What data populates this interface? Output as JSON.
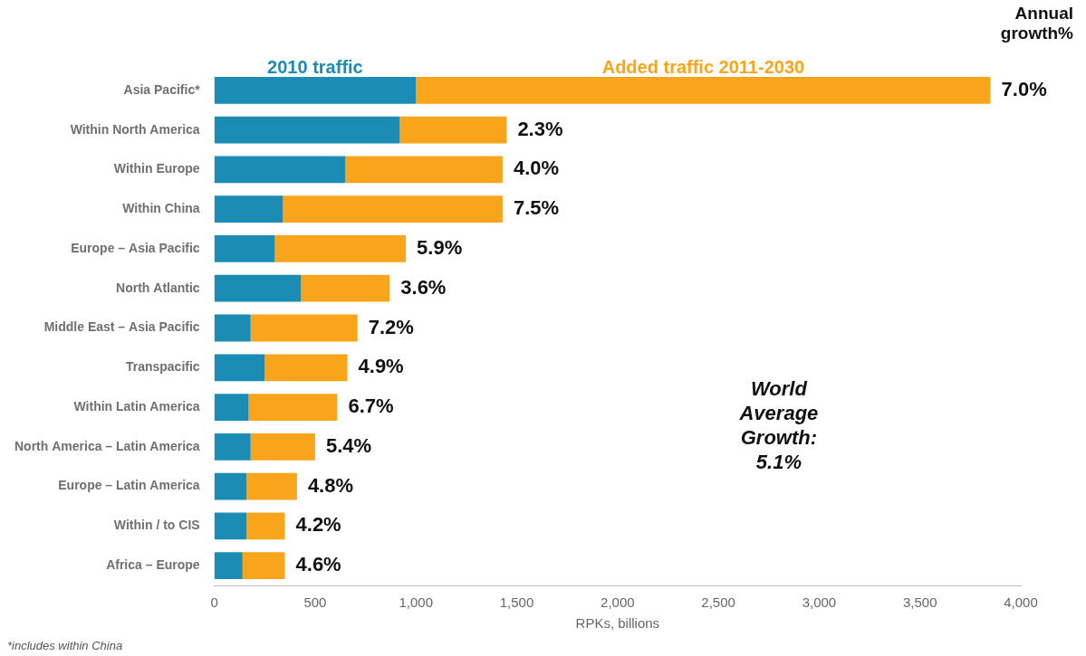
{
  "chart_data": {
    "type": "bar",
    "orientation": "horizontal",
    "stacked": true,
    "grid": false,
    "legend": "top",
    "categories": [
      "Asia Pacific*",
      "Within North America",
      "Within Europe",
      "Within China",
      "Europe – Asia Pacific",
      "North Atlantic",
      "Middle East – Asia Pacific",
      "Transpacific",
      "Within Latin America",
      "North America – Latin America",
      "Europe – Latin America",
      "Within / to CIS",
      "Africa – Europe"
    ],
    "series": [
      {
        "name": "2010 traffic",
        "color": "#1b8db5",
        "values": [
          1000,
          920,
          650,
          340,
          300,
          430,
          180,
          250,
          170,
          180,
          160,
          160,
          140
        ]
      },
      {
        "name": "Added traffic 2011-2030",
        "color": "#f9a51b",
        "values": [
          2850,
          530,
          780,
          1090,
          650,
          440,
          530,
          410,
          440,
          320,
          250,
          190,
          210
        ]
      }
    ],
    "annual_growth": {
      "title": "Annual growth%",
      "values": [
        7.0,
        2.3,
        4.0,
        7.5,
        5.9,
        3.6,
        7.2,
        4.9,
        6.7,
        5.4,
        4.8,
        4.2,
        4.6
      ],
      "value_labels": [
        "7.0%",
        "2.3%",
        "4.0%",
        "7.5%",
        "5.9%",
        "3.6%",
        "7.2%",
        "4.9%",
        "6.7%",
        "5.4%",
        "4.8%",
        "4.2%",
        "4.6%"
      ]
    },
    "annotations": [
      "World Average Growth: 5.1%"
    ],
    "footnote": "*includes within China",
    "xlabel": "RPKs, billions",
    "xlim": [
      0,
      4000
    ],
    "xticks": [
      0,
      500,
      {
        "value": 1000,
        "label": "1,000"
      },
      {
        "value": 1500,
        "label": "1,500"
      },
      {
        "value": 2000,
        "label": "2,000"
      },
      {
        "value": 2500,
        "label": "2,500"
      },
      {
        "value": 3000,
        "label": "3,000"
      },
      {
        "value": 3500,
        "label": "3,500"
      },
      {
        "value": 4000,
        "label": "4,000"
      }
    ]
  }
}
